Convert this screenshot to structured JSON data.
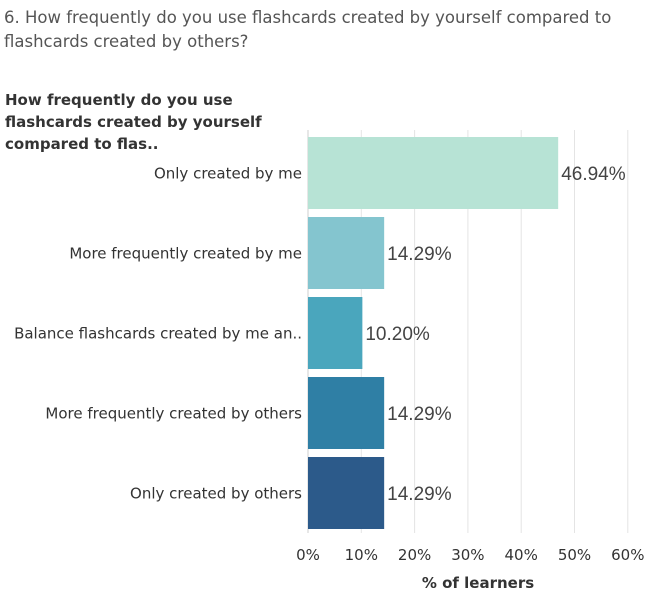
{
  "question": "6. How frequently do you use flashcards created by yourself compared to flashcards created by others?",
  "row_header": "How frequently do you use flashcards created by yourself compared to flas..",
  "chart_data": {
    "type": "bar",
    "orientation": "horizontal",
    "categories": [
      "Only created by me",
      "More frequently created by me",
      "Balance flashcards created by me an..",
      "More frequently created by others",
      "Only created by others"
    ],
    "values": [
      46.94,
      14.29,
      10.2,
      14.29,
      14.29
    ],
    "value_labels": [
      "46.94%",
      "14.29%",
      "10.20%",
      "14.29%",
      "14.29%"
    ],
    "colors": [
      "#b7e3d5",
      "#84c5cf",
      "#4aa6bd",
      "#2f7fa5",
      "#2c5a8a"
    ],
    "xlabel": "% of learners",
    "xlim": [
      0,
      60
    ],
    "xticks": [
      0,
      10,
      20,
      30,
      40,
      50,
      60
    ],
    "xtick_labels": [
      "0%",
      "10%",
      "20%",
      "30%",
      "40%",
      "50%",
      "60%"
    ],
    "grid": true
  }
}
